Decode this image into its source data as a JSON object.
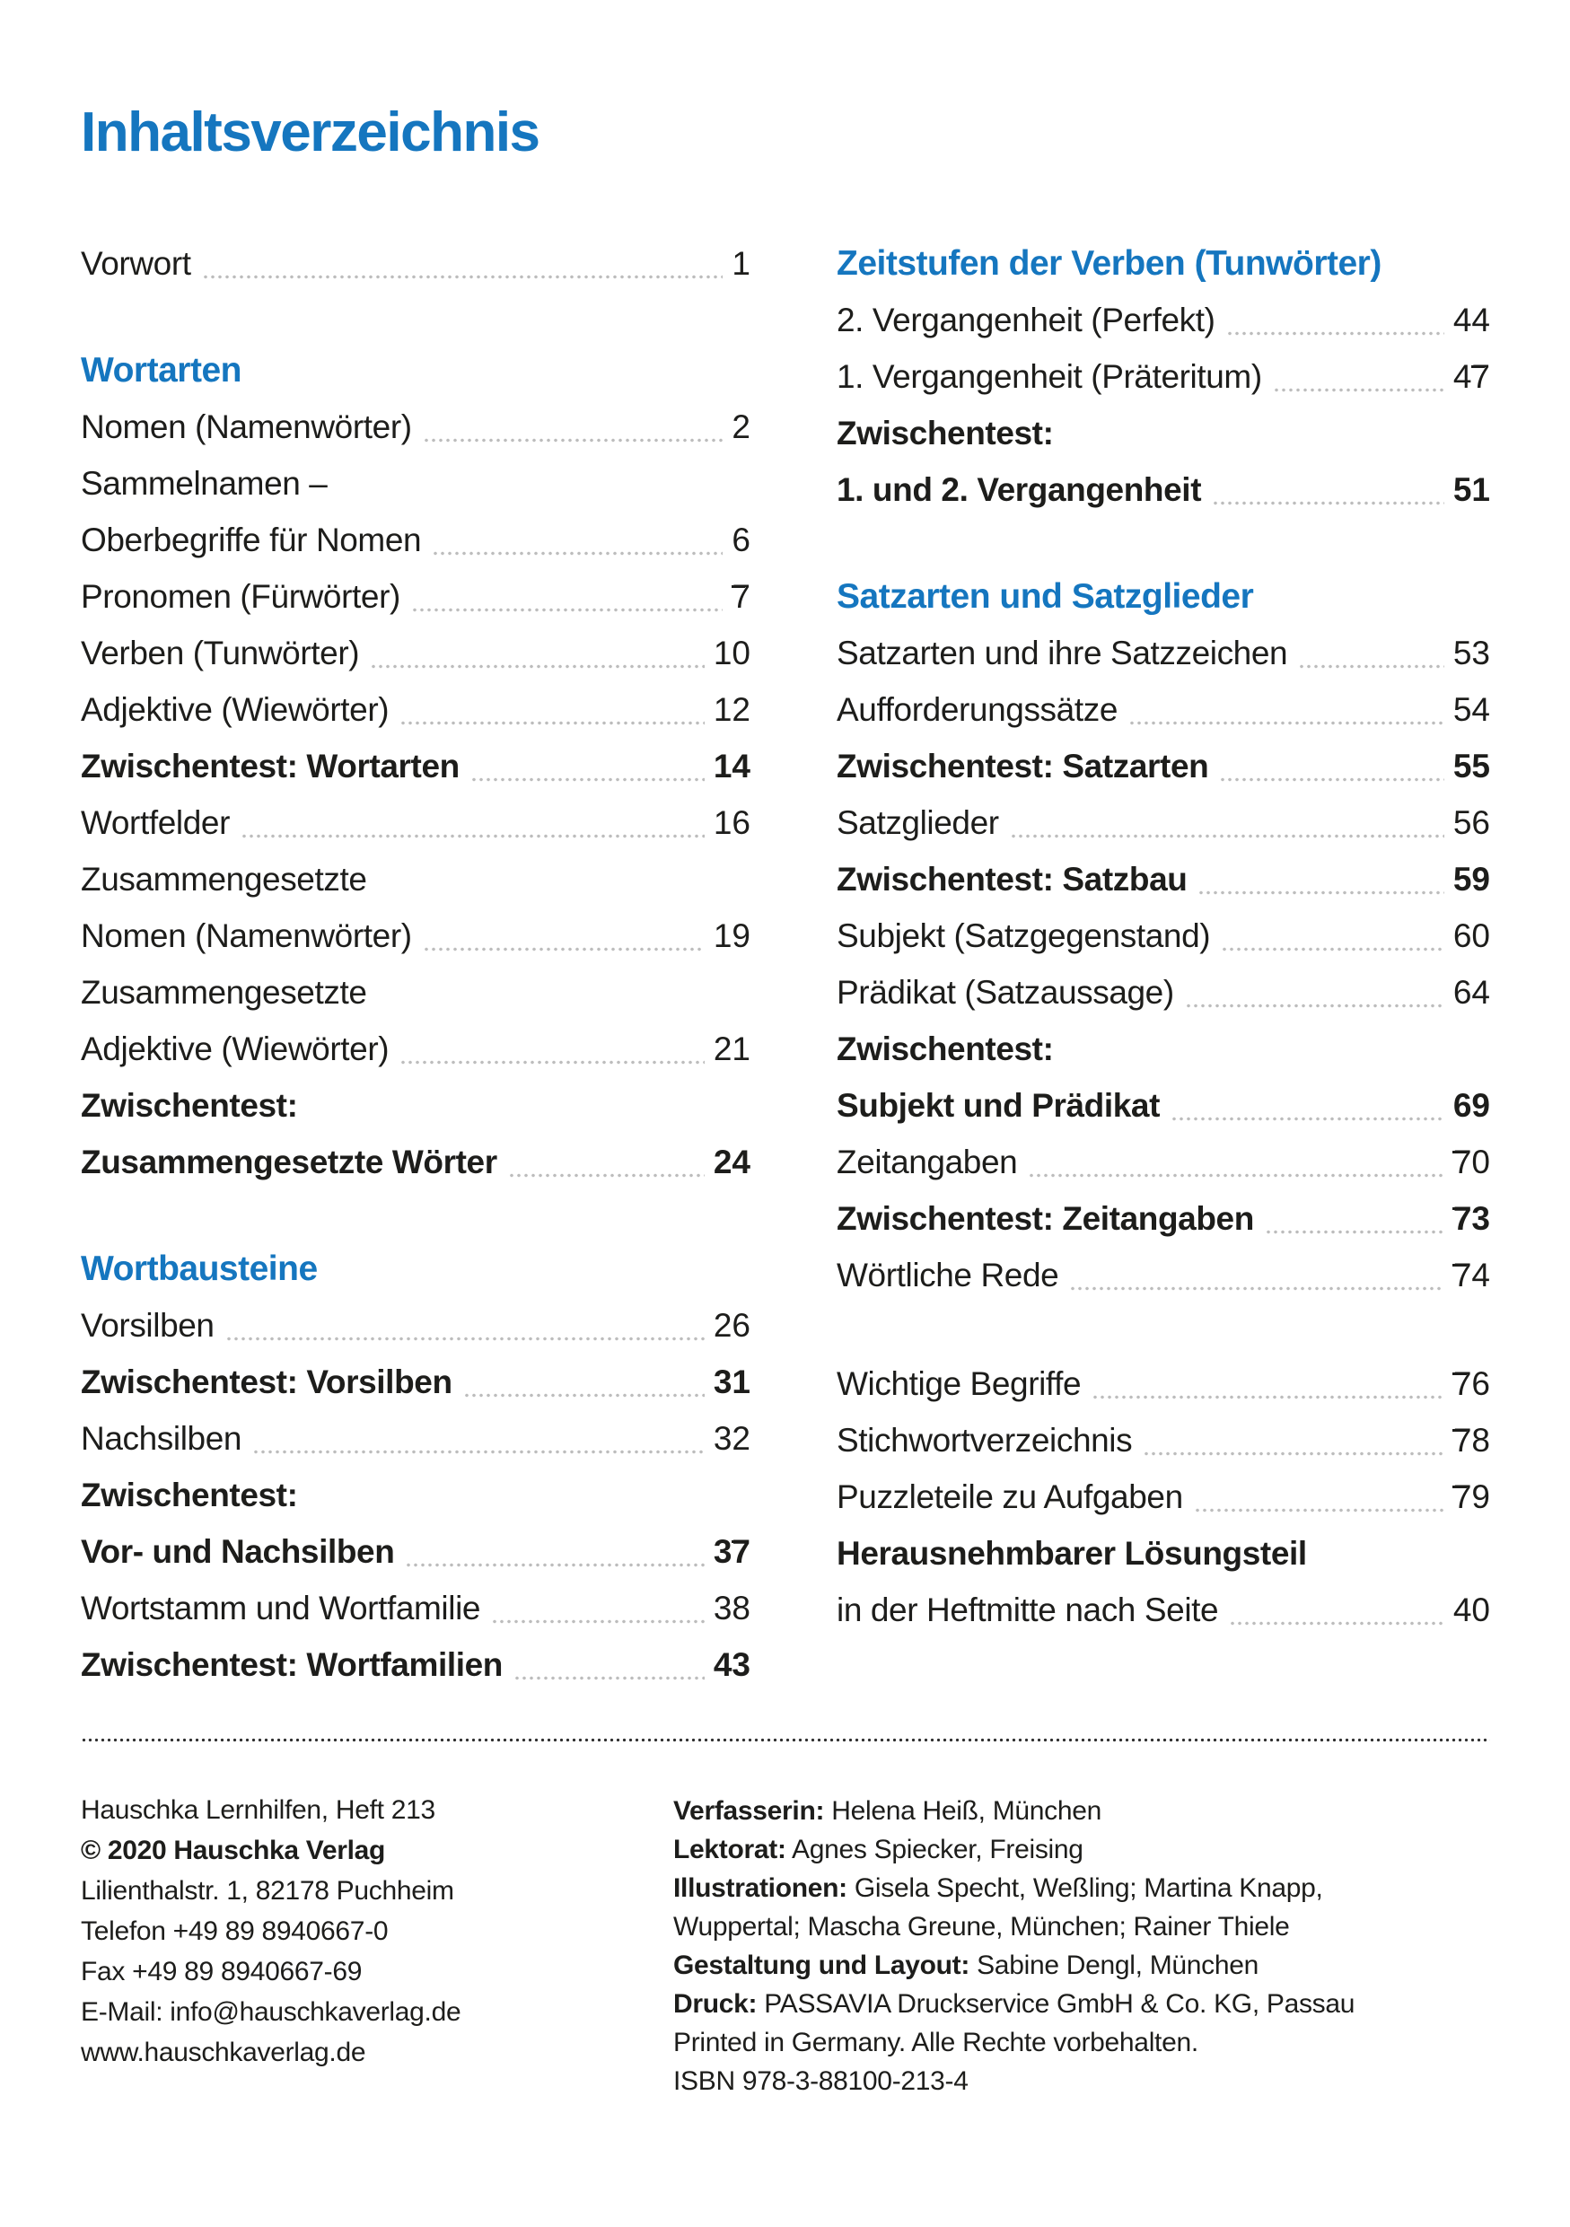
{
  "page": {
    "title": "Inhaltsverzeichnis",
    "colors": {
      "accent_blue": "#1576bf",
      "text": "#1d1d1b",
      "leader_gray": "#bdbdbd"
    }
  },
  "toc": {
    "left": [
      {
        "text": "Vorwort",
        "page": "1"
      },
      {
        "text": "Wortarten"
      },
      {
        "text": "Nomen (Namenwörter)",
        "page": "2"
      },
      {
        "line1": "Sammelnamen –",
        "line2": "Oberbegriffe für Nomen",
        "page": "6"
      },
      {
        "text": "Pronomen (Fürwörter)",
        "page": "7"
      },
      {
        "text": "Verben (Tunwörter)",
        "page": "10"
      },
      {
        "text": "Adjektive (Wiewörter)",
        "page": "12"
      },
      {
        "text": "Zwischentest: Wortarten",
        "page": "14"
      },
      {
        "text": "Wortfelder",
        "page": "16"
      },
      {
        "line1": "Zusammengesetzte",
        "line2": "Nomen (Namenwörter)",
        "page": "19"
      },
      {
        "line1": "Zusammengesetzte",
        "line2": "Adjektive (Wiewörter)",
        "page": "21"
      },
      {
        "line1": "Zwischentest:",
        "line2": "Zusammengesetzte Wörter",
        "page": "24"
      },
      {
        "text": "Wortbausteine"
      },
      {
        "text": "Vorsilben",
        "page": "26"
      },
      {
        "text": "Zwischentest: Vorsilben",
        "page": "31"
      },
      {
        "text": "Nachsilben",
        "page": "32"
      },
      {
        "line1": "Zwischentest:",
        "line2": "Vor- und Nachsilben",
        "page": "37"
      },
      {
        "text": "Wortstamm und Wortfamilie",
        "page": "38"
      },
      {
        "text": "Zwischentest: Wortfamilien",
        "page": "43"
      }
    ],
    "right": [
      {
        "text": "Zeitstufen der Verben (Tunwörter)"
      },
      {
        "text": "2. Vergangenheit (Perfekt)",
        "page": "44"
      },
      {
        "text": "1. Vergangenheit (Präteritum)",
        "page": "47"
      },
      {
        "line1": "Zwischentest:",
        "line2": "1. und 2. Vergangenheit",
        "page": "51"
      },
      {
        "text": "Satzarten und Satzglieder"
      },
      {
        "text": "Satzarten und ihre Satzzeichen",
        "page": "53"
      },
      {
        "text": "Aufforderungssätze",
        "page": "54"
      },
      {
        "text": "Zwischentest: Satzarten",
        "page": "55"
      },
      {
        "text": "Satzglieder",
        "page": "56"
      },
      {
        "text": "Zwischentest: Satzbau",
        "page": "59"
      },
      {
        "text": "Subjekt (Satzgegenstand)",
        "page": "60"
      },
      {
        "text": "Prädikat (Satzaussage)",
        "page": "64"
      },
      {
        "line1": "Zwischentest:",
        "line2": "Subjekt und Prädikat",
        "page": "69"
      },
      {
        "text": "Zeitangaben",
        "page": "70"
      },
      {
        "text": "Zwischentest: Zeitangaben",
        "page": "73"
      },
      {
        "text": "Wörtliche Rede",
        "page": "74"
      },
      {
        "text": "Wichtige Begriffe",
        "page": "76"
      },
      {
        "text": "Stichwortverzeichnis",
        "page": "78"
      },
      {
        "text": "Puzzleteile zu Aufgaben",
        "page": "79"
      },
      {
        "line1": "Herausnehmbarer Lösungsteil",
        "line2": "in der Heftmitte nach Seite",
        "page": "40"
      }
    ]
  },
  "footer": {
    "left": [
      "Hauschka Lernhilfen, Heft 213",
      "© 2020 Hauschka Verlag",
      "Lilienthalstr. 1, 82178 Puchheim",
      "Telefon +49 89 8940667-0",
      "Fax +49 89 8940667-69",
      "E-Mail: info@hauschkaverlag.de",
      "www.hauschkaverlag.de"
    ],
    "right": [
      {
        "label": "Verfasserin:",
        "text": " Helena Heiß, München"
      },
      {
        "label": "Lektorat:",
        "text": " Agnes Spiecker, Freising"
      },
      {
        "label": "Illustrationen:",
        "text": " Gisela Specht, Weßling; Martina Knapp,"
      },
      {
        "label": "",
        "text": "Wuppertal;  Mascha Greune, München; Rainer Thiele"
      },
      {
        "label": "Gestaltung und Layout:",
        "text": " Sabine Dengl, München"
      },
      {
        "label": "Druck:",
        "text": " PASSAVIA Druckservice GmbH & Co. KG, Passau"
      },
      {
        "label": "",
        "text": "Printed in Germany. Alle Rechte vorbehalten."
      },
      {
        "label": "",
        "text": "ISBN 978-3-88100-213-4"
      }
    ]
  }
}
